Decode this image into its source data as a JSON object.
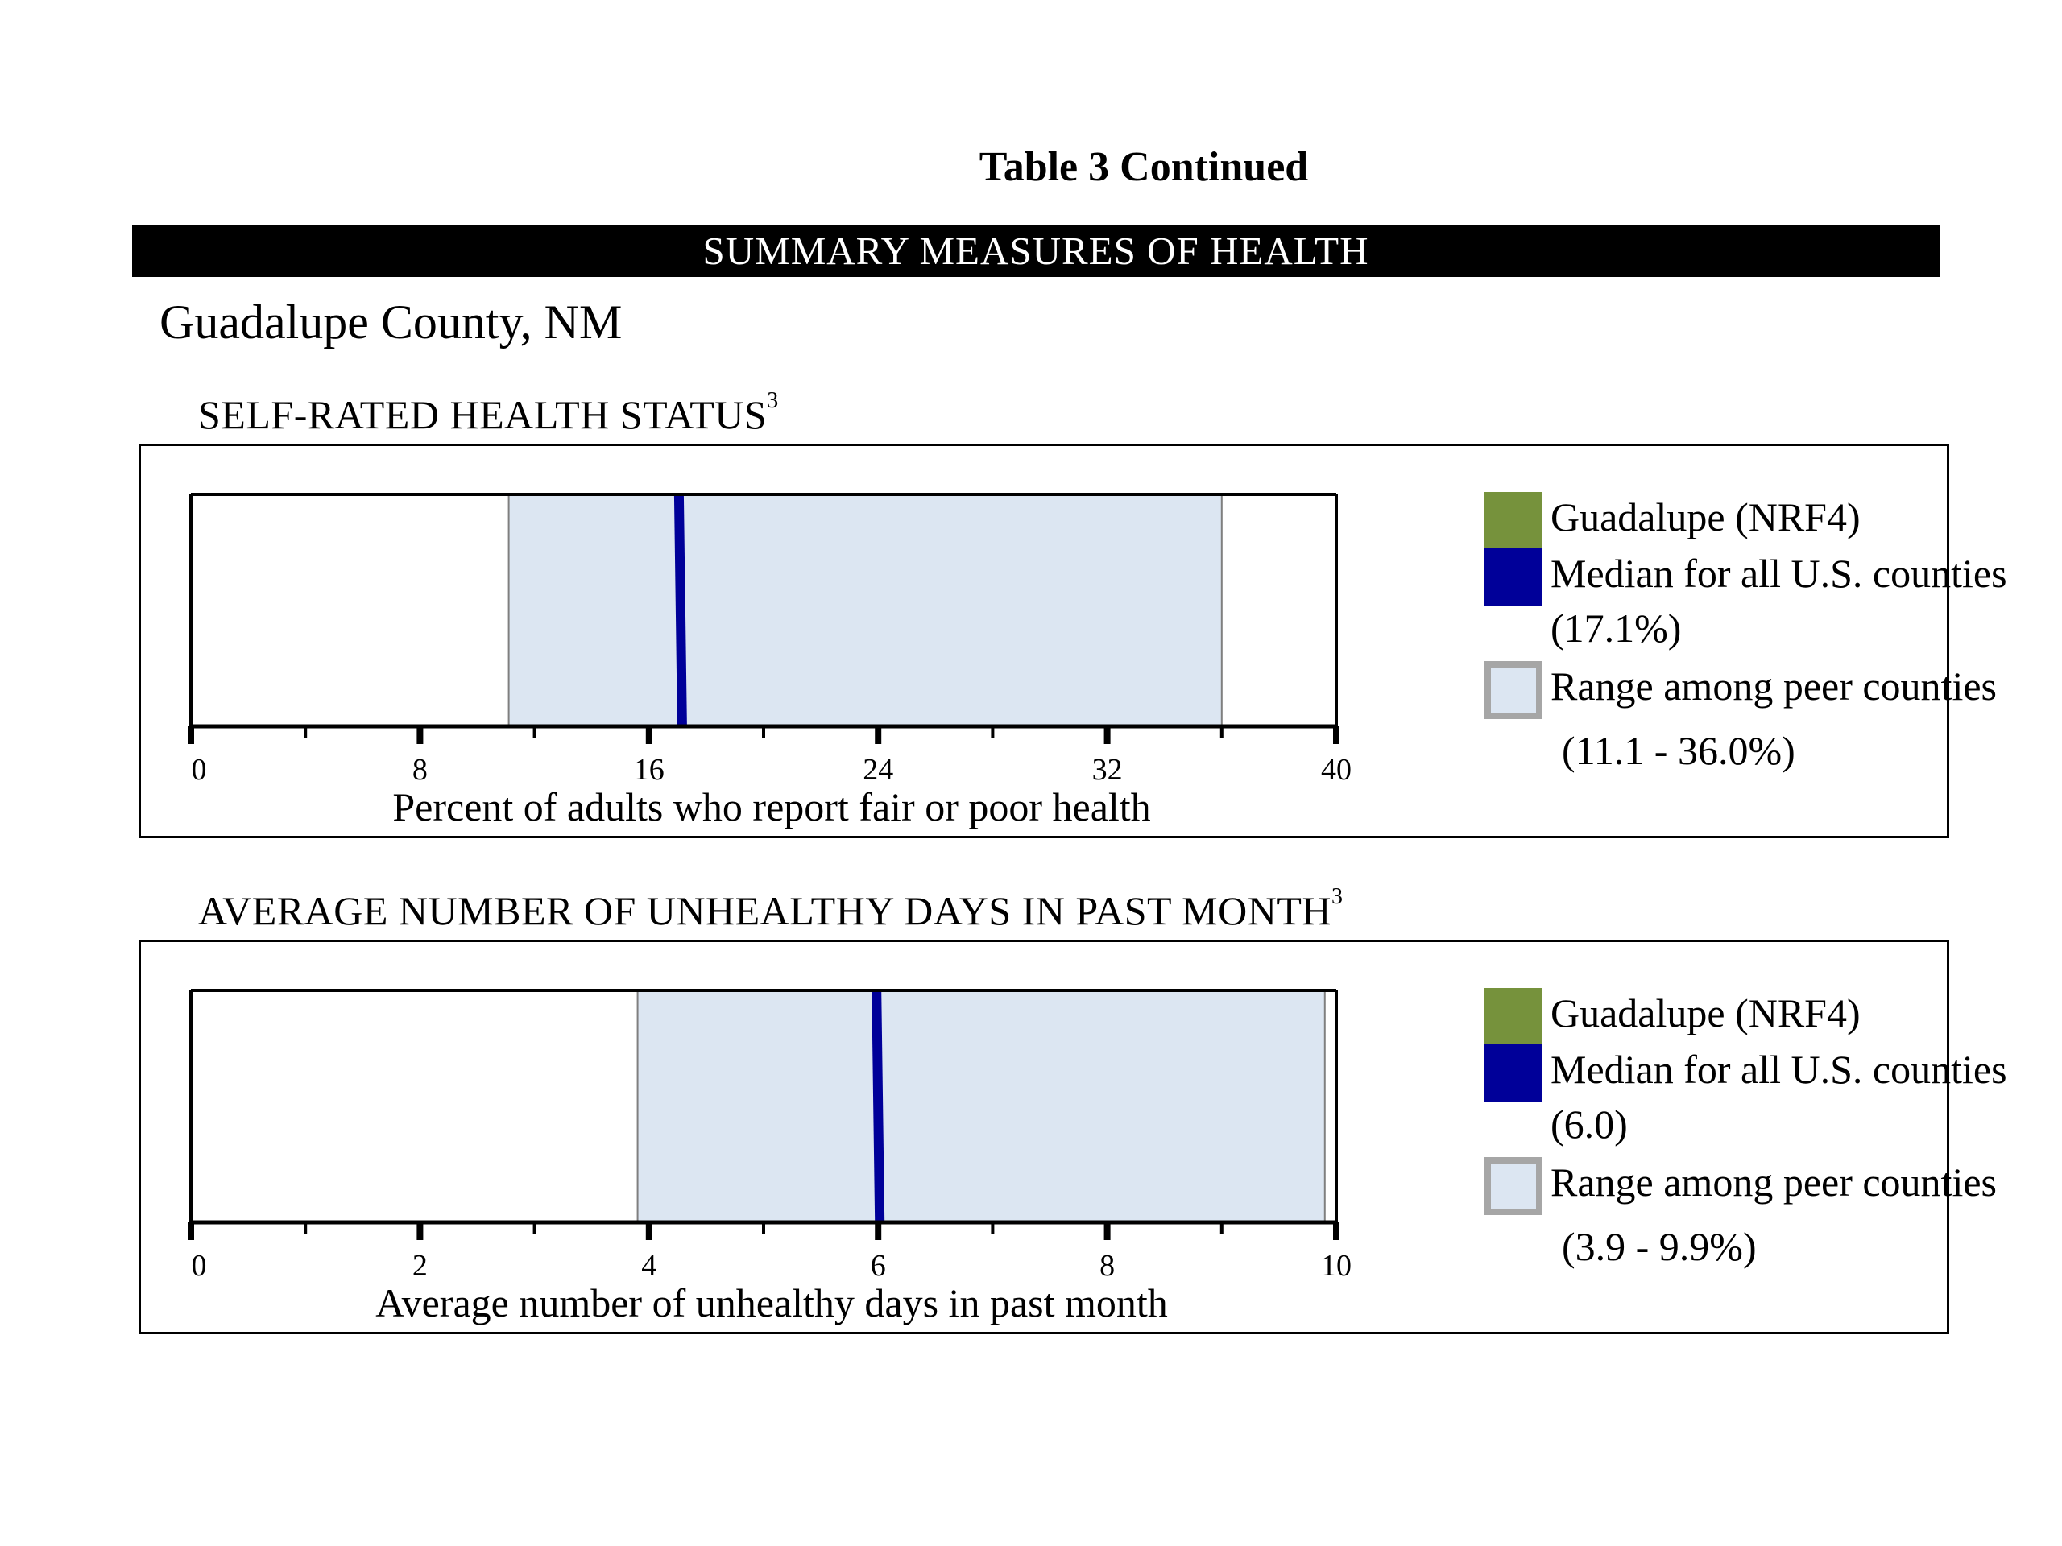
{
  "page": {
    "table_title": "Table 3 Continued",
    "banner": "SUMMARY MEASURES OF HEALTH",
    "county": "Guadalupe County, NM"
  },
  "colors": {
    "county_green": "#76923c",
    "median_blue": "#000099",
    "range_fill": "#dce6f2",
    "range_border": "#a6a6a6"
  },
  "chart_data": [
    {
      "type": "range-bar",
      "title": "SELF-RATED HEALTH STATUS",
      "title_superscript": "3",
      "xlabel": "Percent of adults who report fair or poor health",
      "xlim": [
        0,
        40
      ],
      "major_ticks": [
        0,
        8,
        16,
        24,
        32,
        40
      ],
      "tick_labels": [
        "0",
        "8",
        "16",
        "24",
        "32",
        "40"
      ],
      "minor_ticks": [
        4,
        12,
        20,
        28,
        36
      ],
      "median": 17.1,
      "range": [
        11.1,
        36.0
      ],
      "legend": {
        "county": "Guadalupe (NRF4)",
        "median_line1": "Median for all U.S. counties",
        "median_line2": "(17.1%)",
        "range_line1": "Range among peer counties",
        "range_line2": "(11.1 - 36.0%)"
      }
    },
    {
      "type": "range-bar",
      "title": "AVERAGE NUMBER OF UNHEALTHY DAYS IN PAST MONTH",
      "title_superscript": "3",
      "xlabel": "Average number of unhealthy days in past month",
      "xlim": [
        0,
        10
      ],
      "major_ticks": [
        0,
        2,
        4,
        6,
        8,
        10
      ],
      "tick_labels": [
        "0",
        "2",
        "4",
        "6",
        "8",
        "10"
      ],
      "minor_ticks": [
        1,
        3,
        5,
        7,
        9
      ],
      "median": 6.0,
      "range": [
        3.9,
        9.9
      ],
      "legend": {
        "county": "Guadalupe  (NRF4)",
        "median_line1": "Median for all U.S. counties",
        "median_line2": "(6.0)",
        "range_line1": "Range among peer counties",
        "range_line2": "(3.9 - 9.9%)"
      }
    }
  ]
}
